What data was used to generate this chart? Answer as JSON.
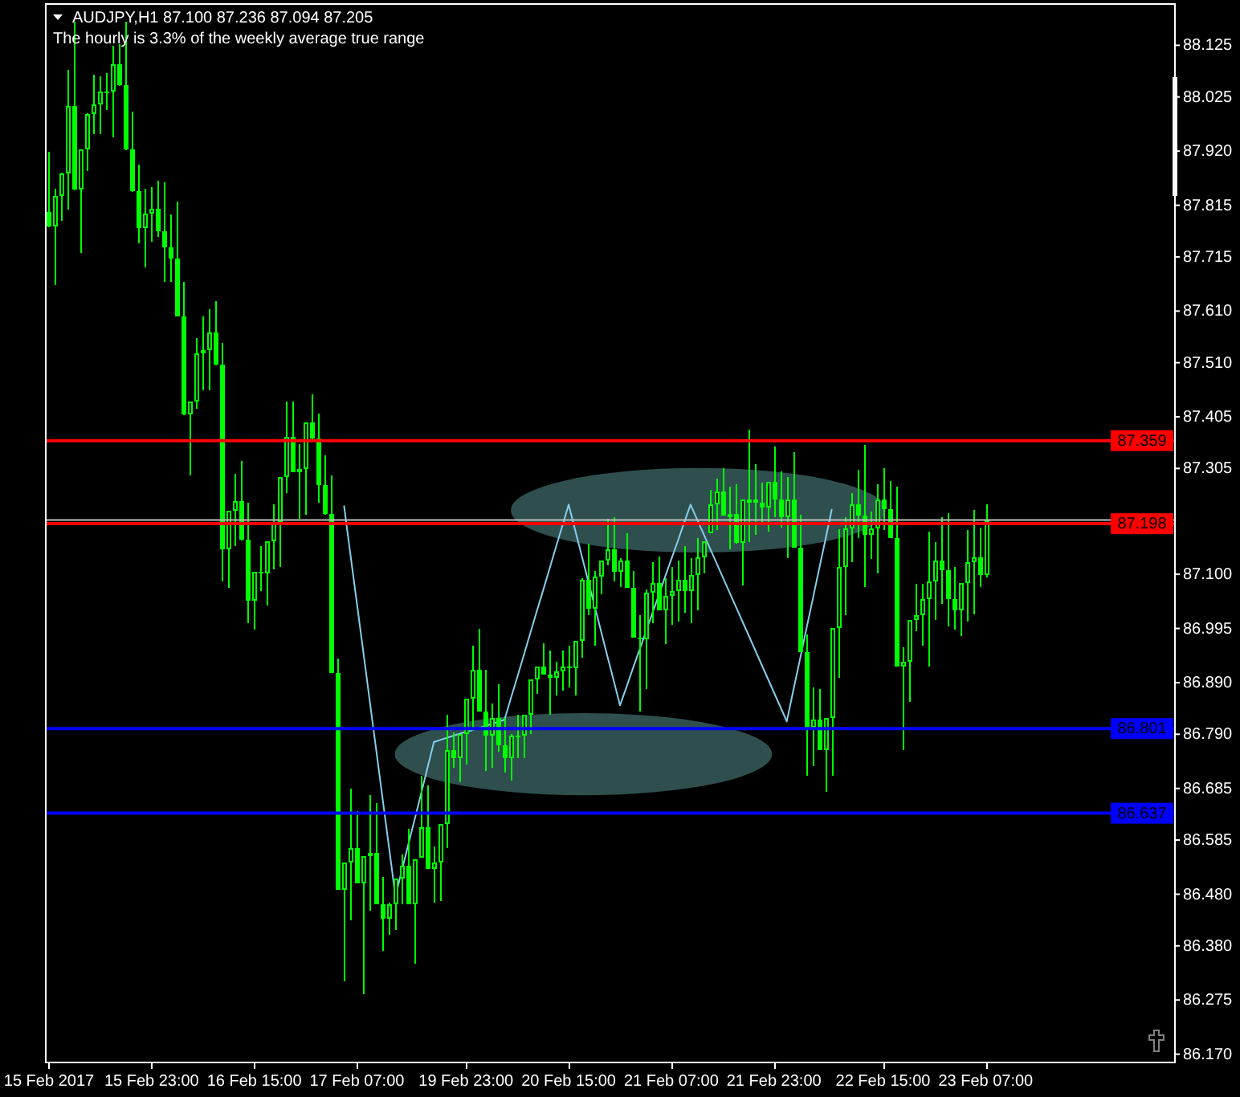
{
  "chart_data": {
    "type": "candlestick",
    "title": "AUDJPY,H1 87.100 87.236 87.094 87.205",
    "subtitle": "The hourly is 3.3% of the weekly average true range",
    "categories": [
      "15 Feb 2017",
      null,
      null,
      null,
      null,
      null,
      null,
      null,
      null,
      null,
      null,
      null,
      null,
      null,
      null,
      null,
      "15 Feb 23:00",
      null,
      null,
      null,
      null,
      null,
      null,
      null,
      null,
      null,
      null,
      null,
      null,
      null,
      null,
      null,
      "16 Feb 15:00",
      null,
      null,
      null,
      null,
      null,
      null,
      null,
      null,
      null,
      null,
      null,
      null,
      null,
      null,
      null,
      "17 Feb 07:00",
      null,
      null,
      null,
      null,
      null,
      null,
      null,
      null,
      null,
      null,
      null,
      null,
      null,
      null,
      null,
      null,
      "19 Feb 23:00",
      null,
      null,
      null,
      null,
      null,
      null,
      null,
      null,
      null,
      null,
      null,
      null,
      null,
      null,
      null,
      "20 Feb 15:00",
      null,
      null,
      null,
      null,
      null,
      null,
      null,
      null,
      null,
      null,
      null,
      null,
      null,
      null,
      null,
      "21 Feb 07:00",
      null,
      null,
      null,
      null,
      null,
      null,
      null,
      null,
      null,
      null,
      null,
      null,
      null,
      null,
      null,
      "21 Feb 23:00",
      null,
      null,
      null,
      null,
      null,
      null,
      null,
      null,
      null,
      null,
      null,
      null,
      null,
      null,
      null,
      null,
      "22 Feb 15:00",
      null,
      null,
      null,
      null,
      null,
      null,
      null,
      null,
      null,
      null,
      null,
      null,
      null,
      null,
      null,
      "23 Feb 07:00",
      null,
      null,
      null,
      null,
      null,
      null,
      null,
      null,
      null,
      null,
      null,
      null,
      null,
      null,
      null,
      null,
      null,
      null,
      null,
      null,
      null,
      null,
      null,
      null,
      null,
      null,
      null,
      null,
      null
    ],
    "color": "#00ff00",
    "ohlc": [
      [
        87.801,
        87.919,
        87.773,
        87.773
      ],
      [
        87.773,
        87.847,
        87.661,
        87.832
      ],
      [
        87.832,
        87.878,
        87.785,
        87.878
      ],
      [
        87.878,
        88.077,
        87.807,
        88.008
      ],
      [
        88.008,
        88.171,
        87.844,
        87.844
      ],
      [
        87.844,
        87.922,
        87.723,
        87.922
      ],
      [
        87.922,
        87.993,
        87.881,
        87.993
      ],
      [
        87.993,
        88.068,
        87.953,
        88.009
      ],
      [
        88.009,
        88.065,
        87.953,
        88.036
      ],
      [
        88.036,
        88.071,
        88.0,
        88.036
      ],
      [
        88.036,
        88.124,
        87.947,
        88.087
      ],
      [
        88.087,
        88.127,
        88.046,
        88.047
      ],
      [
        88.047,
        88.171,
        87.922,
        87.922
      ],
      [
        87.922,
        87.997,
        87.841,
        87.841
      ],
      [
        87.841,
        87.894,
        87.742,
        87.771
      ],
      [
        87.771,
        87.847,
        87.695,
        87.798
      ],
      [
        87.798,
        87.85,
        87.745,
        87.809
      ],
      [
        87.809,
        87.863,
        87.754,
        87.764
      ],
      [
        87.764,
        87.86,
        87.667,
        87.733
      ],
      [
        87.733,
        87.798,
        87.667,
        87.711
      ],
      [
        87.711,
        87.822,
        87.599,
        87.599
      ],
      [
        87.599,
        87.667,
        87.409,
        87.409
      ],
      [
        87.409,
        87.434,
        87.291,
        87.434
      ],
      [
        87.434,
        87.558,
        87.421,
        87.528
      ],
      [
        87.528,
        87.599,
        87.456,
        87.535
      ],
      [
        87.535,
        87.614,
        87.456,
        87.568
      ],
      [
        87.568,
        87.63,
        87.505,
        87.505
      ],
      [
        87.505,
        87.549,
        87.086,
        87.148
      ],
      [
        87.148,
        87.222,
        87.073,
        87.222
      ],
      [
        87.222,
        87.294,
        87.154,
        87.243
      ],
      [
        87.243,
        87.319,
        87.166,
        87.166
      ],
      [
        87.166,
        87.238,
        87.005,
        87.048
      ],
      [
        87.048,
        87.104,
        86.992,
        87.104
      ],
      [
        87.104,
        87.154,
        87.067,
        87.101
      ],
      [
        87.101,
        87.163,
        87.039,
        87.163
      ],
      [
        87.163,
        87.235,
        87.11,
        87.201
      ],
      [
        87.201,
        87.288,
        87.114,
        87.288
      ],
      [
        87.288,
        87.434,
        87.257,
        87.366
      ],
      [
        87.366,
        87.434,
        87.297,
        87.297
      ],
      [
        87.297,
        87.353,
        87.207,
        87.305
      ],
      [
        87.305,
        87.393,
        87.216,
        87.393
      ],
      [
        87.393,
        87.449,
        87.362,
        87.362
      ],
      [
        87.362,
        87.412,
        87.238,
        87.274
      ],
      [
        87.274,
        87.331,
        87.216,
        87.216
      ],
      [
        87.216,
        87.291,
        86.908,
        86.908
      ],
      [
        86.908,
        86.936,
        86.489,
        86.489
      ],
      [
        86.489,
        86.542,
        86.311,
        86.542
      ],
      [
        86.542,
        86.685,
        86.43,
        86.571
      ],
      [
        86.571,
        86.641,
        86.501,
        86.501
      ],
      [
        86.501,
        86.554,
        86.287,
        86.554
      ],
      [
        86.554,
        86.672,
        86.448,
        86.559
      ],
      [
        86.559,
        86.657,
        86.461,
        86.461
      ],
      [
        86.461,
        86.514,
        86.371,
        86.433
      ],
      [
        86.433,
        86.464,
        86.402,
        86.461
      ],
      [
        86.461,
        86.51,
        86.411,
        86.509
      ],
      [
        86.509,
        86.557,
        86.461,
        86.534
      ],
      [
        86.534,
        86.607,
        86.461,
        86.461
      ],
      [
        86.461,
        86.548,
        86.346,
        86.548
      ],
      [
        86.551,
        86.709,
        86.551,
        86.61
      ],
      [
        86.61,
        86.691,
        86.529,
        86.529
      ],
      [
        86.529,
        86.573,
        86.464,
        86.542
      ],
      [
        86.542,
        86.616,
        86.467,
        86.616
      ],
      [
        86.616,
        86.828,
        86.569,
        86.759
      ],
      [
        86.759,
        86.793,
        86.725,
        86.744
      ],
      [
        86.744,
        86.79,
        86.697,
        86.79
      ],
      [
        86.79,
        86.859,
        86.731,
        86.859
      ],
      [
        86.859,
        86.961,
        86.796,
        86.915
      ],
      [
        86.915,
        86.995,
        86.834,
        86.834
      ],
      [
        86.834,
        86.915,
        86.719,
        86.787
      ],
      [
        86.787,
        86.849,
        86.725,
        86.822
      ],
      [
        86.822,
        86.887,
        86.756,
        86.769
      ],
      [
        86.769,
        86.821,
        86.716,
        86.745
      ],
      [
        86.745,
        86.79,
        86.7,
        86.786
      ],
      [
        86.786,
        86.828,
        86.744,
        86.786
      ],
      [
        86.786,
        86.828,
        86.744,
        86.828
      ],
      [
        86.828,
        86.896,
        86.79,
        86.895
      ],
      [
        86.895,
        86.921,
        86.868,
        86.921
      ],
      [
        86.921,
        86.967,
        86.905,
        86.905
      ],
      [
        86.905,
        86.952,
        86.828,
        86.898
      ],
      [
        86.898,
        86.93,
        86.865,
        86.913
      ],
      [
        86.913,
        86.952,
        86.874,
        86.921
      ],
      [
        86.921,
        86.961,
        86.88,
        86.918
      ],
      [
        86.918,
        86.971,
        86.865,
        86.971
      ],
      [
        86.971,
        87.092,
        86.939,
        87.09
      ],
      [
        87.09,
        87.16,
        87.02,
        87.034
      ],
      [
        87.034,
        87.107,
        86.961,
        87.094
      ],
      [
        87.094,
        87.126,
        87.061,
        87.126
      ],
      [
        87.126,
        87.207,
        87.117,
        87.148
      ],
      [
        87.148,
        87.21,
        87.086,
        87.104
      ],
      [
        87.104,
        87.132,
        87.076,
        87.126
      ],
      [
        87.126,
        87.179,
        87.073,
        87.073
      ],
      [
        87.073,
        87.107,
        86.977,
        86.977
      ],
      [
        86.977,
        87.02,
        86.834,
        86.974
      ],
      [
        86.974,
        87.07,
        86.877,
        87.064
      ],
      [
        87.064,
        87.123,
        87.005,
        87.083
      ],
      [
        87.083,
        87.135,
        87.03,
        87.03
      ],
      [
        87.03,
        87.092,
        86.964,
        87.058
      ],
      [
        87.058,
        87.114,
        87.002,
        87.067
      ],
      [
        87.067,
        87.126,
        87.008,
        87.09
      ],
      [
        87.09,
        87.154,
        87.026,
        87.069
      ],
      [
        87.069,
        87.132,
        87.005,
        87.1
      ],
      [
        87.1,
        87.17,
        87.03,
        87.132
      ],
      [
        87.132,
        87.163,
        87.101,
        87.163
      ],
      [
        87.179,
        87.263,
        87.179,
        87.235
      ],
      [
        87.235,
        87.285,
        87.185,
        87.26
      ],
      [
        87.26,
        87.306,
        87.213,
        87.213
      ],
      [
        87.213,
        87.269,
        87.148,
        87.218
      ],
      [
        87.218,
        87.275,
        87.16,
        87.162
      ],
      [
        87.162,
        87.244,
        87.079,
        87.244
      ],
      [
        87.244,
        87.381,
        87.163,
        87.245
      ],
      [
        87.245,
        87.313,
        87.176,
        87.24
      ],
      [
        87.24,
        87.278,
        87.201,
        87.23
      ],
      [
        87.23,
        87.278,
        87.182,
        87.278
      ],
      [
        87.278,
        87.347,
        87.21,
        87.246
      ],
      [
        87.246,
        87.3,
        87.191,
        87.21
      ],
      [
        87.21,
        87.288,
        87.132,
        87.244
      ],
      [
        87.244,
        87.337,
        87.151,
        87.151
      ],
      [
        87.151,
        87.216,
        86.949,
        86.949
      ],
      [
        86.949,
        86.983,
        86.709,
        86.804
      ],
      [
        86.804,
        86.88,
        86.728,
        86.818
      ],
      [
        86.818,
        86.877,
        86.759,
        86.759
      ],
      [
        86.759,
        86.821,
        86.678,
        86.821
      ],
      [
        86.821,
        86.995,
        86.709,
        86.995
      ],
      [
        86.995,
        87.188,
        86.899,
        87.115
      ],
      [
        87.115,
        87.21,
        87.02,
        87.19
      ],
      [
        87.19,
        87.257,
        87.123,
        87.237
      ],
      [
        87.237,
        87.303,
        87.17,
        87.213
      ],
      [
        87.213,
        87.35,
        87.076,
        87.176
      ],
      [
        87.176,
        87.222,
        87.129,
        87.188
      ],
      [
        87.188,
        87.275,
        87.101,
        87.246
      ],
      [
        87.246,
        87.306,
        87.185,
        87.226
      ],
      [
        87.226,
        87.281,
        87.17,
        87.17
      ],
      [
        87.17,
        87.269,
        86.921,
        86.921
      ],
      [
        86.921,
        86.958,
        86.759,
        86.932
      ],
      [
        86.932,
        87.011,
        86.852,
        87.011
      ],
      [
        87.011,
        87.082,
        86.989,
        87.022
      ],
      [
        87.022,
        87.082,
        86.961,
        87.052
      ],
      [
        87.052,
        87.182,
        86.921,
        87.087
      ],
      [
        87.087,
        87.163,
        87.011,
        87.126
      ],
      [
        87.126,
        87.21,
        87.042,
        87.109
      ],
      [
        87.109,
        87.219,
        86.999,
        87.053
      ],
      [
        87.053,
        87.114,
        86.992,
        87.031
      ],
      [
        87.031,
        87.082,
        86.98,
        87.082
      ],
      [
        87.082,
        87.185,
        87.008,
        87.124
      ],
      [
        87.124,
        87.225,
        87.023,
        87.134
      ],
      [
        87.134,
        87.191,
        87.076,
        87.1
      ],
      [
        87.1,
        87.236,
        87.094,
        87.205
      ],
      null,
      null,
      null,
      null,
      null,
      null,
      null,
      null,
      null,
      null,
      null,
      null,
      null,
      null,
      null,
      null,
      null,
      null,
      null,
      null,
      null,
      null,
      null,
      null,
      null,
      null,
      null,
      null,
      null
    ],
    "series": [
      {
        "type": "line",
        "color": "#87ceeb",
        "values": [
          null,
          null,
          null,
          null,
          null,
          null,
          null,
          null,
          null,
          null,
          null,
          null,
          null,
          null,
          null,
          null,
          null,
          null,
          null,
          null,
          null,
          null,
          null,
          null,
          null,
          null,
          null,
          null,
          null,
          null,
          null,
          null,
          null,
          null,
          null,
          null,
          null,
          null,
          null,
          null,
          null,
          null,
          null,
          null,
          null,
          null,
          87.232,
          87.137,
          87.043,
          86.949,
          86.854,
          86.76,
          86.665,
          86.571,
          86.476,
          86.526,
          86.576,
          86.625,
          86.675,
          86.725,
          86.775,
          86.779,
          86.783,
          86.787,
          86.791,
          86.795,
          86.798,
          86.802,
          86.806,
          86.81,
          86.814,
          86.818,
          86.86,
          86.901,
          86.943,
          86.985,
          87.027,
          87.068,
          87.11,
          87.152,
          87.193,
          87.235,
          87.186,
          87.138,
          87.089,
          87.041,
          86.992,
          86.943,
          86.895,
          86.846,
          86.881,
          86.917,
          86.952,
          86.987,
          87.023,
          87.058,
          87.094,
          87.129,
          87.164,
          87.2,
          87.235,
          87.207,
          87.179,
          87.151,
          87.123,
          87.095,
          87.067,
          87.039,
          87.011,
          86.983,
          86.955,
          86.927,
          86.899,
          86.871,
          86.843,
          86.815,
          86.874,
          86.932,
          86.991,
          87.049,
          87.108,
          87.166,
          87.225,
          null,
          null,
          null,
          null,
          null,
          null,
          null,
          null,
          null,
          null,
          null,
          null,
          null,
          null,
          null,
          null,
          null,
          null,
          null,
          null,
          null,
          null,
          null,
          null,
          null,
          null,
          null,
          null,
          null,
          null,
          null,
          null,
          null,
          null,
          null,
          null,
          null,
          null,
          null,
          null,
          null,
          null,
          null,
          null,
          null,
          null,
          null,
          null,
          null,
          null,
          null,
          null,
          null
        ]
      }
    ],
    "ylim": [
      86.154,
      88.205
    ],
    "yticks": [
      88.125,
      88.025,
      {
        "value": 87.92,
        "label": "87.920"
      },
      87.815,
      87.715,
      {
        "value": 87.61,
        "label": "87.610"
      },
      {
        "value": 87.51,
        "label": "87.510"
      },
      87.405,
      87.305,
      {
        "value": 87.1,
        "label": "87.100"
      },
      86.995,
      {
        "value": 86.89,
        "label": "86.890"
      },
      {
        "value": 86.79,
        "label": "86.790"
      },
      86.685,
      86.585,
      {
        "value": 86.48,
        "label": "86.480"
      },
      {
        "value": 86.38,
        "label": "86.380"
      },
      86.275,
      {
        "value": 86.17,
        "label": "86.170"
      }
    ],
    "ref_lines": [
      {
        "axis": "y",
        "value": 87.205,
        "color": "#c0c0c0"
      },
      {
        "axis": "y",
        "value": 87.359,
        "label": "87.359",
        "color": "#ff0000"
      },
      {
        "axis": "y",
        "value": 87.198,
        "label": "87.198",
        "color": "#ff0000"
      },
      {
        "axis": "y",
        "value": 86.801,
        "label": "86.801",
        "color": "#0000ff"
      },
      {
        "axis": "y",
        "value": 86.637,
        "label": "86.637",
        "color": "#0000ff"
      }
    ]
  }
}
